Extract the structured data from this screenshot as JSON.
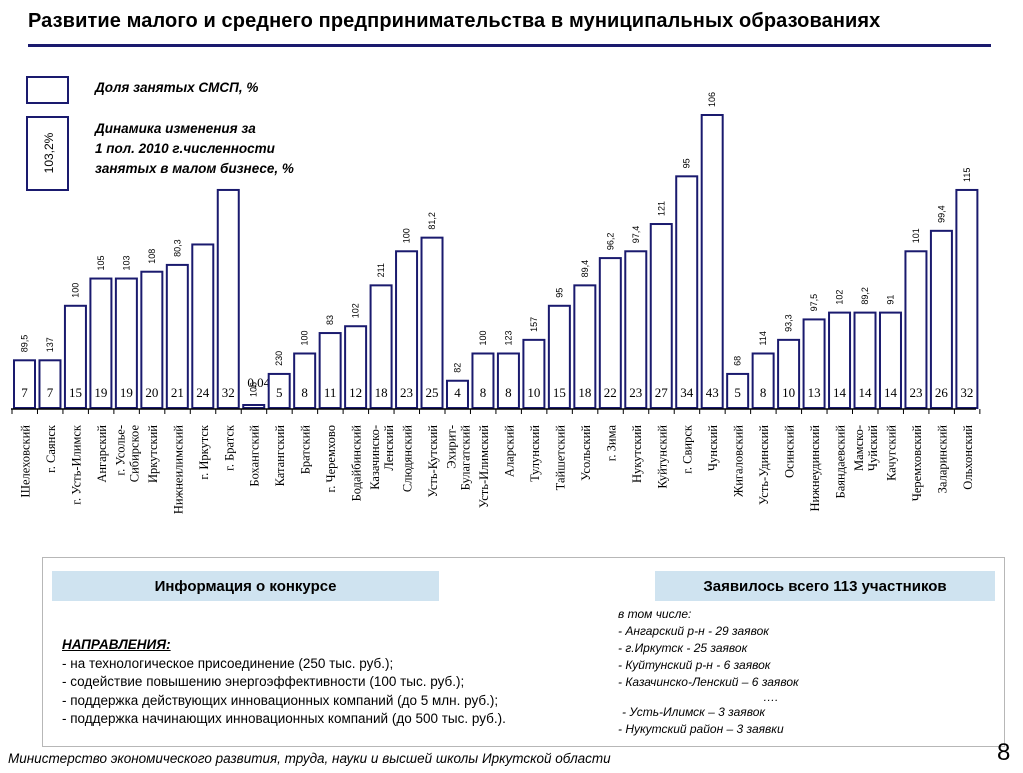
{
  "header": {
    "title": "Развитие малого и среднего предпринимательства в муниципальных образованиях"
  },
  "legend": {
    "share_label": "Доля занятых СМСП, %",
    "dynamics_value": "103,2%",
    "dynamics_lines": [
      "Динамика изменения за",
      "1 пол. 2010 г.численности",
      "занятых в малом бизнесе, %"
    ]
  },
  "chart_data": {
    "type": "bar",
    "ylim": [
      0,
      47
    ],
    "categories": [
      [
        "Шелеховский"
      ],
      [
        "г. Саянск"
      ],
      [
        "г. Усть-Илимск"
      ],
      [
        "Ангарский"
      ],
      [
        "г. Усолье-",
        "Сибирское"
      ],
      [
        "Иркутский"
      ],
      [
        "Нижнеилимский"
      ],
      [
        "г. Иркутск"
      ],
      [
        "г. Братск"
      ],
      [
        "Бохангский"
      ],
      [
        "Катангский"
      ],
      [
        "Братский"
      ],
      [
        "г. Черемхово"
      ],
      [
        "Бодайбинский"
      ],
      [
        "Казачинско-",
        "Ленский"
      ],
      [
        "Слюдянский"
      ],
      [
        "Усть-Кутский"
      ],
      [
        "Эхирит-",
        "Булагатский"
      ],
      [
        "Усть-Илимский"
      ],
      [
        "Аларский"
      ],
      [
        "Тулунский"
      ],
      [
        "Тайшетский"
      ],
      [
        "Усольский"
      ],
      [
        "г. Зима"
      ],
      [
        "Нукутский"
      ],
      [
        "Куйтунский"
      ],
      [
        "г. Свирск"
      ],
      [
        "Чунский"
      ],
      [
        "Жигаловский"
      ],
      [
        "Усть-Удинский"
      ],
      [
        "Осинский"
      ],
      [
        "Нижнеудинский"
      ],
      [
        "Баяндаевский"
      ],
      [
        "Мамско-",
        "Чуйский"
      ],
      [
        "Качугский"
      ],
      [
        "Черемховский"
      ],
      [
        "Заларинский"
      ],
      [
        "Ольхонский"
      ]
    ],
    "values": [
      7,
      7,
      15,
      19,
      19,
      20,
      21,
      24,
      32,
      0.04,
      5,
      8,
      11,
      12,
      18,
      23,
      25,
      4,
      8,
      8,
      10,
      15,
      18,
      22,
      23,
      27,
      34,
      43,
      5,
      8,
      10,
      13,
      14,
      14,
      14,
      23,
      26,
      32
    ],
    "value_labels": [
      "7",
      "7",
      "15",
      "19",
      "19",
      "20",
      "21",
      "24",
      "32",
      "0,04",
      "5",
      "8",
      "11",
      "12",
      "18",
      "23",
      "25",
      "4",
      "8",
      "8",
      "10",
      "15",
      "18",
      "22",
      "23",
      "27",
      "34",
      "43",
      "5",
      "8",
      "10",
      "13",
      "14",
      "14",
      "14",
      "23",
      "26",
      "32"
    ],
    "dynamics": [
      "89,5",
      "137",
      "100",
      "105",
      "103",
      "108",
      "80,3",
      "",
      "",
      "106",
      "230",
      "100",
      "83",
      "102",
      "211",
      "100",
      "81,2",
      "82",
      "100",
      "123",
      "157",
      "95",
      "89,4",
      "96,2",
      "97,4",
      "121",
      "95",
      "106",
      "68",
      "114",
      "93,3",
      "97,5",
      "102",
      "89,2",
      "91",
      "101",
      "99,4",
      "115"
    ]
  },
  "info": {
    "left_header": "Информация о конкурсе",
    "right_header": "Заявилось всего 113  участников",
    "directions_header": "НАПРАВЛЕНИЯ:",
    "directions": [
      "- на технологическое присоединение (250 тыс. руб.);",
      "- содействие повышению энергоэффективности (100 тыс. руб.);",
      "- поддержка действующих инновационных компаний (до 5 млн. руб.);",
      "- поддержка начинающих инновационных компаний (до 500 тыс. руб.)."
    ],
    "applications_intro": "в том числе:",
    "applications": [
      "- Ангарский р-н  - 29 заявок",
      "- г.Иркутск - 25 заявок",
      "- Куйтунский р-н  - 6 заявок",
      "- Казачинско-Ленский – 6 заявок"
    ],
    "ellipsis": "….",
    "applications_more": [
      " - Усть-Илимск – 3 заявок",
      "- Нукутский район – 3 заявки"
    ]
  },
  "footer": {
    "text": "Министерство экономического развития, труда, науки и высшей школы Иркутской области"
  },
  "page": {
    "number": "8"
  },
  "colors": {
    "bar_fill": "#ffffff",
    "bar_stroke": "#1a1a6e",
    "header_bg": "#cfe3f0",
    "title_rule": "#1a1a6e"
  }
}
